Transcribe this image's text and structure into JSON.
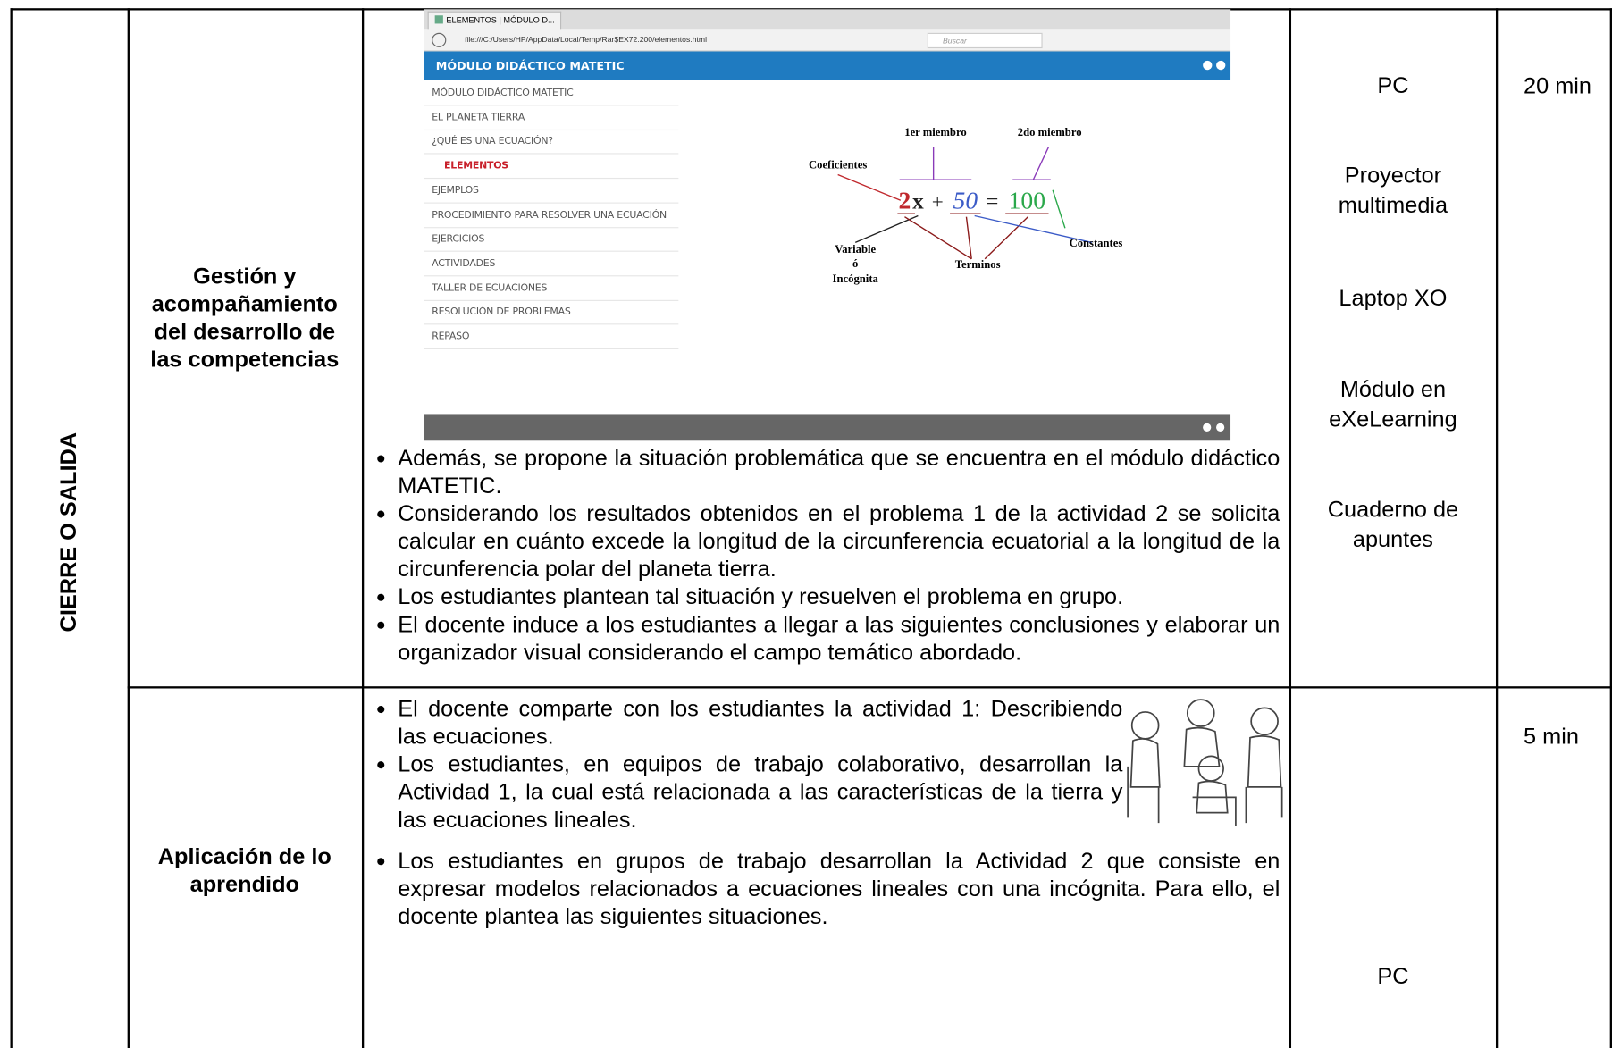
{
  "table": {
    "phase": "CIERRE O SALIDA",
    "rows": [
      {
        "process": "Gestión y acompañamiento del desarrollo de las competencias",
        "activities": [
          "Además, se propone la situación problemática que se encuentra en el módulo didáctico MATETIC.",
          "Considerando los resultados obtenidos en el problema 1 de la actividad 2 se solicita calcular en cuánto excede la longitud de la circunferencia ecuatorial a la longitud de la circunferencia polar del planeta tierra.",
          "Los estudiantes plantean tal situación y resuelven el problema en grupo.",
          "El docente induce a los estudiantes a llegar a las siguientes conclusiones y elaborar un organizador visual considerando el campo temático abordado."
        ],
        "resources": [
          "PC",
          "Proyector multimedia",
          "Laptop XO",
          "Módulo en eXeLearning",
          "Cuaderno de apuntes"
        ],
        "time": "20 min"
      },
      {
        "process": "Aplicación de lo aprendido",
        "activities": [
          "El docente comparte con los estudiantes la actividad 1: Describiendo las ecuaciones.",
          "Los estudiantes, en equipos de trabajo colaborativo, desarrollan la Actividad 1, la cual está relacionada a las características de la tierra y las ecuaciones lineales.",
          "Los estudiantes en grupos de trabajo desarrollan la Actividad 2 que consiste en expresar modelos relacionados a ecuaciones lineales con una incógnita. Para ello, el docente plantea las siguientes situaciones."
        ],
        "resources": [
          "PC"
        ],
        "time": "5 min"
      }
    ]
  },
  "screenshot": {
    "tab_title": "ELEMENTOS | MÓDULO D...",
    "url": "file:///C:/Users/HP/AppData/Local/Temp/Rar$EX72.200/elementos.html",
    "search": "Buscar",
    "header": "MÓDULO DIDÁCTICO MATETIC",
    "menu": [
      "MÓDULO DIDÁCTICO MATETIC",
      "EL PLANETA TIERRA",
      "¿QUÉ ES UNA ECUACIÓN?",
      "ELEMENTOS",
      "EJEMPLOS",
      "PROCEDIMIENTO PARA RESOLVER UNA ECUACIÓN",
      "EJERCICIOS",
      "ACTIVIDADES",
      "TALLER DE ECUACIONES",
      "RESOLUCIÓN DE PROBLEMAS",
      "REPASO"
    ],
    "diagram": {
      "first_member": "1er miembro",
      "second_member": "2do miembro",
      "coefficients": "Coeficientes",
      "constants": "Constantes",
      "terms": "Terminos",
      "variable": [
        "Variable",
        "ó",
        "Incógnita"
      ],
      "equation": [
        "2",
        "x",
        "+",
        "50",
        "=",
        "100"
      ]
    }
  }
}
